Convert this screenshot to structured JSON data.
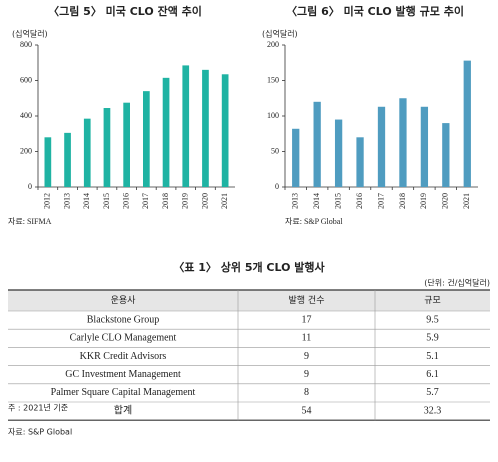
{
  "chart_data": [
    {
      "type": "bar",
      "title": "〈그림 5〉 미국 CLO 잔액 추이",
      "y_label": "(십억달러)",
      "source": "자료: SIFMA",
      "categories": [
        "2012",
        "2013",
        "2014",
        "2015",
        "2016",
        "2017",
        "2018",
        "2019",
        "2020",
        "2021"
      ],
      "values": [
        280,
        305,
        385,
        445,
        475,
        540,
        615,
        685,
        660,
        635
      ],
      "color": "#1fb3a3",
      "ylim": [
        0,
        800
      ],
      "yticks": [
        0,
        200,
        400,
        600,
        800
      ],
      "grid": false
    },
    {
      "type": "bar",
      "title": "〈그림 6〉 미국 CLO 발행 규모 추이",
      "y_label": "(십억달러)",
      "source": "자료: S&P Global",
      "categories": [
        "2013",
        "2014",
        "2015",
        "2016",
        "2017",
        "2018",
        "2019",
        "2020",
        "2021"
      ],
      "values": [
        82,
        120,
        95,
        70,
        113,
        125,
        113,
        90,
        178
      ],
      "color": "#4f9cc0",
      "ylim": [
        0,
        200
      ],
      "yticks": [
        0,
        50,
        100,
        150,
        200
      ],
      "grid": false
    }
  ],
  "table": {
    "title": "〈표 1〉 상위 5개 CLO 발행사",
    "unit": "(단위: 건/십억달러)",
    "header": [
      "운용사",
      "발행 건수",
      "규모"
    ],
    "rows": [
      [
        "Blackstone Group",
        "17",
        "9.5"
      ],
      [
        "Carlyle CLO Management",
        "11",
        "5.9"
      ],
      [
        "KKR Credit Advisors",
        "9",
        "5.1"
      ],
      [
        "GC Investment Management",
        "9",
        "6.1"
      ],
      [
        "Palmer Square Capital Management",
        "8",
        "5.7"
      ],
      [
        "합계",
        "54",
        "32.3"
      ]
    ]
  },
  "notes": [
    "주  : 2021년 기준",
    "자료: S&P Global"
  ]
}
